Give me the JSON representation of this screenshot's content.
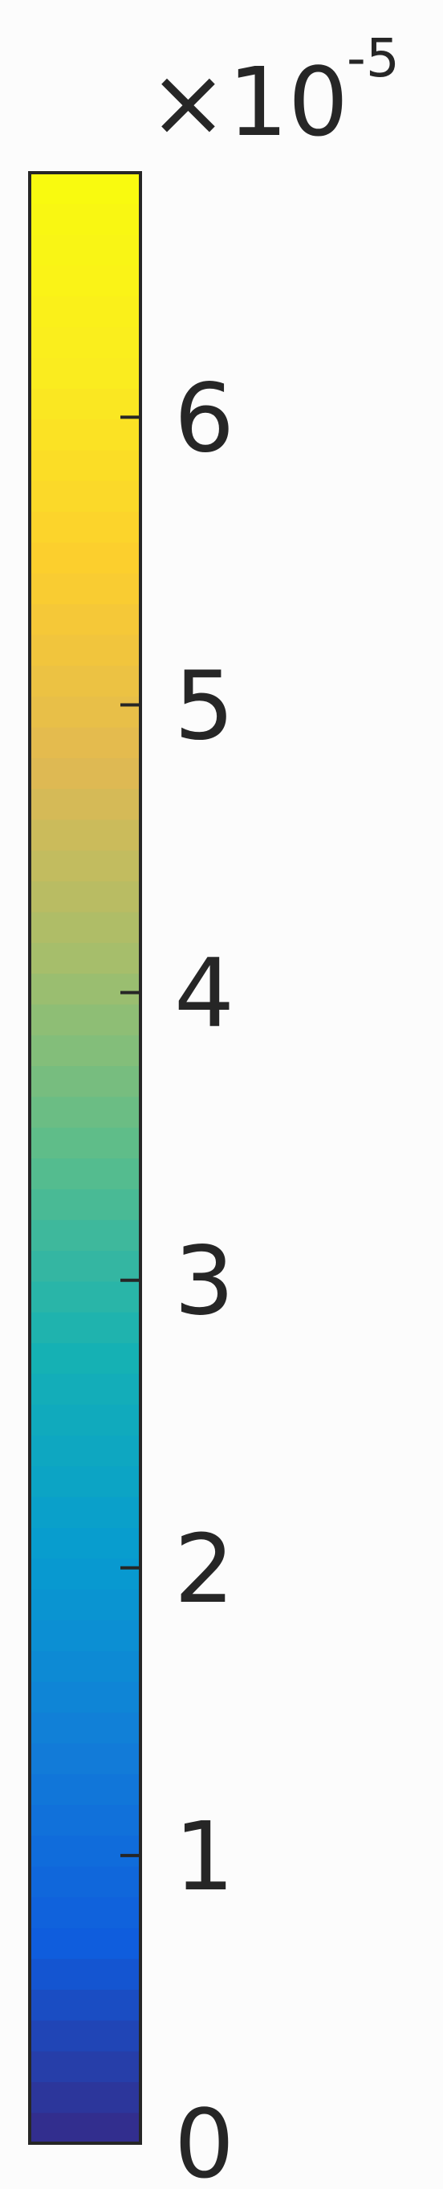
{
  "chart_data": {
    "type": "colorbar",
    "colormap": "parula",
    "orientation": "vertical",
    "ylim": [
      0,
      6.85
    ],
    "ticks": [
      0,
      1,
      2,
      3,
      4,
      5,
      6
    ],
    "tick_labels": [
      "0",
      "1",
      "2",
      "3",
      "4",
      "5",
      "6"
    ],
    "exponent": {
      "base": "×10",
      "power": "-5"
    }
  }
}
